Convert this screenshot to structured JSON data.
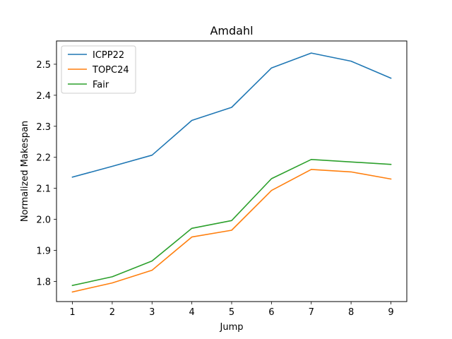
{
  "chart_data": {
    "type": "line",
    "title": "Amdahl",
    "xlabel": "Jump",
    "ylabel": "Normalized Makespan",
    "x": [
      1,
      2,
      3,
      4,
      5,
      6,
      7,
      8,
      9
    ],
    "xlim": [
      0.6,
      9.4
    ],
    "ylim": [
      1.735,
      2.575
    ],
    "yticks": [
      "1.8",
      "1.9",
      "2.0",
      "2.1",
      "2.2",
      "2.3",
      "2.4",
      "2.5"
    ],
    "grid": false,
    "legend_position": "top-left",
    "series": [
      {
        "name": "ICPP22",
        "color": "#1f77b4",
        "values": [
          2.136,
          2.171,
          2.207,
          2.319,
          2.361,
          2.488,
          2.536,
          2.51,
          2.455
        ]
      },
      {
        "name": "TOPC24",
        "color": "#ff7f0e",
        "values": [
          1.766,
          1.795,
          1.836,
          1.943,
          1.965,
          2.093,
          2.161,
          2.153,
          2.13
        ]
      },
      {
        "name": "Fair",
        "color": "#2ca02c",
        "values": [
          1.787,
          1.815,
          1.866,
          1.971,
          1.996,
          2.131,
          2.193,
          2.185,
          2.177
        ]
      }
    ]
  }
}
